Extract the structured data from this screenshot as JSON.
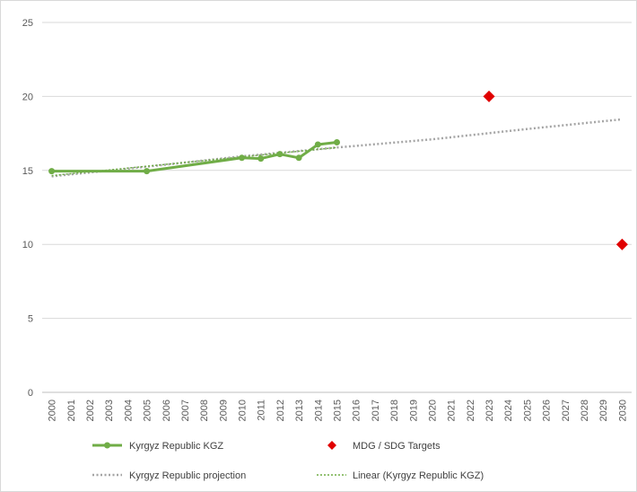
{
  "colors": {
    "main_series": "#70ad47",
    "projection": "#a5a5a5",
    "linear": "#70ad47",
    "targets": "#e00000",
    "grid": "#d9d9d9",
    "text": "#595959"
  },
  "chart_data": {
    "type": "line",
    "title": "",
    "xlabel": "",
    "ylabel": "",
    "ylim": [
      0,
      25
    ],
    "y_ticks": [
      "0",
      "5",
      "10",
      "15",
      "20",
      "25"
    ],
    "categories": [
      "2000",
      "2001",
      "2002",
      "2003",
      "2004",
      "2005",
      "2006",
      "2007",
      "2008",
      "2009",
      "2010",
      "2011",
      "2012",
      "2013",
      "2014",
      "2015",
      "2016",
      "2017",
      "2018",
      "2019",
      "2020",
      "2021",
      "2022",
      "2023",
      "2024",
      "2025",
      "2026",
      "2027",
      "2028",
      "2029",
      "2030"
    ],
    "grid": "horizontal",
    "legend_position": "bottom",
    "series": [
      {
        "name": "Kyrgyz Republic KGZ",
        "style": "solid-line-with-markers",
        "points": [
          [
            2000,
            14.95
          ],
          [
            2005,
            14.95
          ],
          [
            2010,
            15.85
          ],
          [
            2011,
            15.8
          ],
          [
            2012,
            16.1
          ],
          [
            2013,
            15.85
          ],
          [
            2014,
            16.75
          ],
          [
            2015,
            16.9
          ]
        ]
      },
      {
        "name": "MDG / SDG Targets",
        "style": "diamond-markers",
        "points": [
          [
            2023,
            20
          ],
          [
            2030,
            10
          ]
        ]
      },
      {
        "name": "Kyrgyz Republic projection",
        "style": "dotted-grey-line",
        "points": [
          [
            2000,
            14.6
          ],
          [
            2005,
            15.25
          ],
          [
            2010,
            15.95
          ],
          [
            2015,
            16.55
          ],
          [
            2020,
            17.1
          ],
          [
            2025,
            17.8
          ],
          [
            2030,
            18.45
          ]
        ]
      },
      {
        "name": "Linear (Kyrgyz Republic KGZ)",
        "style": "dotted-green-line",
        "points": [
          [
            2000,
            14.65
          ],
          [
            2015,
            16.55
          ]
        ]
      }
    ]
  }
}
